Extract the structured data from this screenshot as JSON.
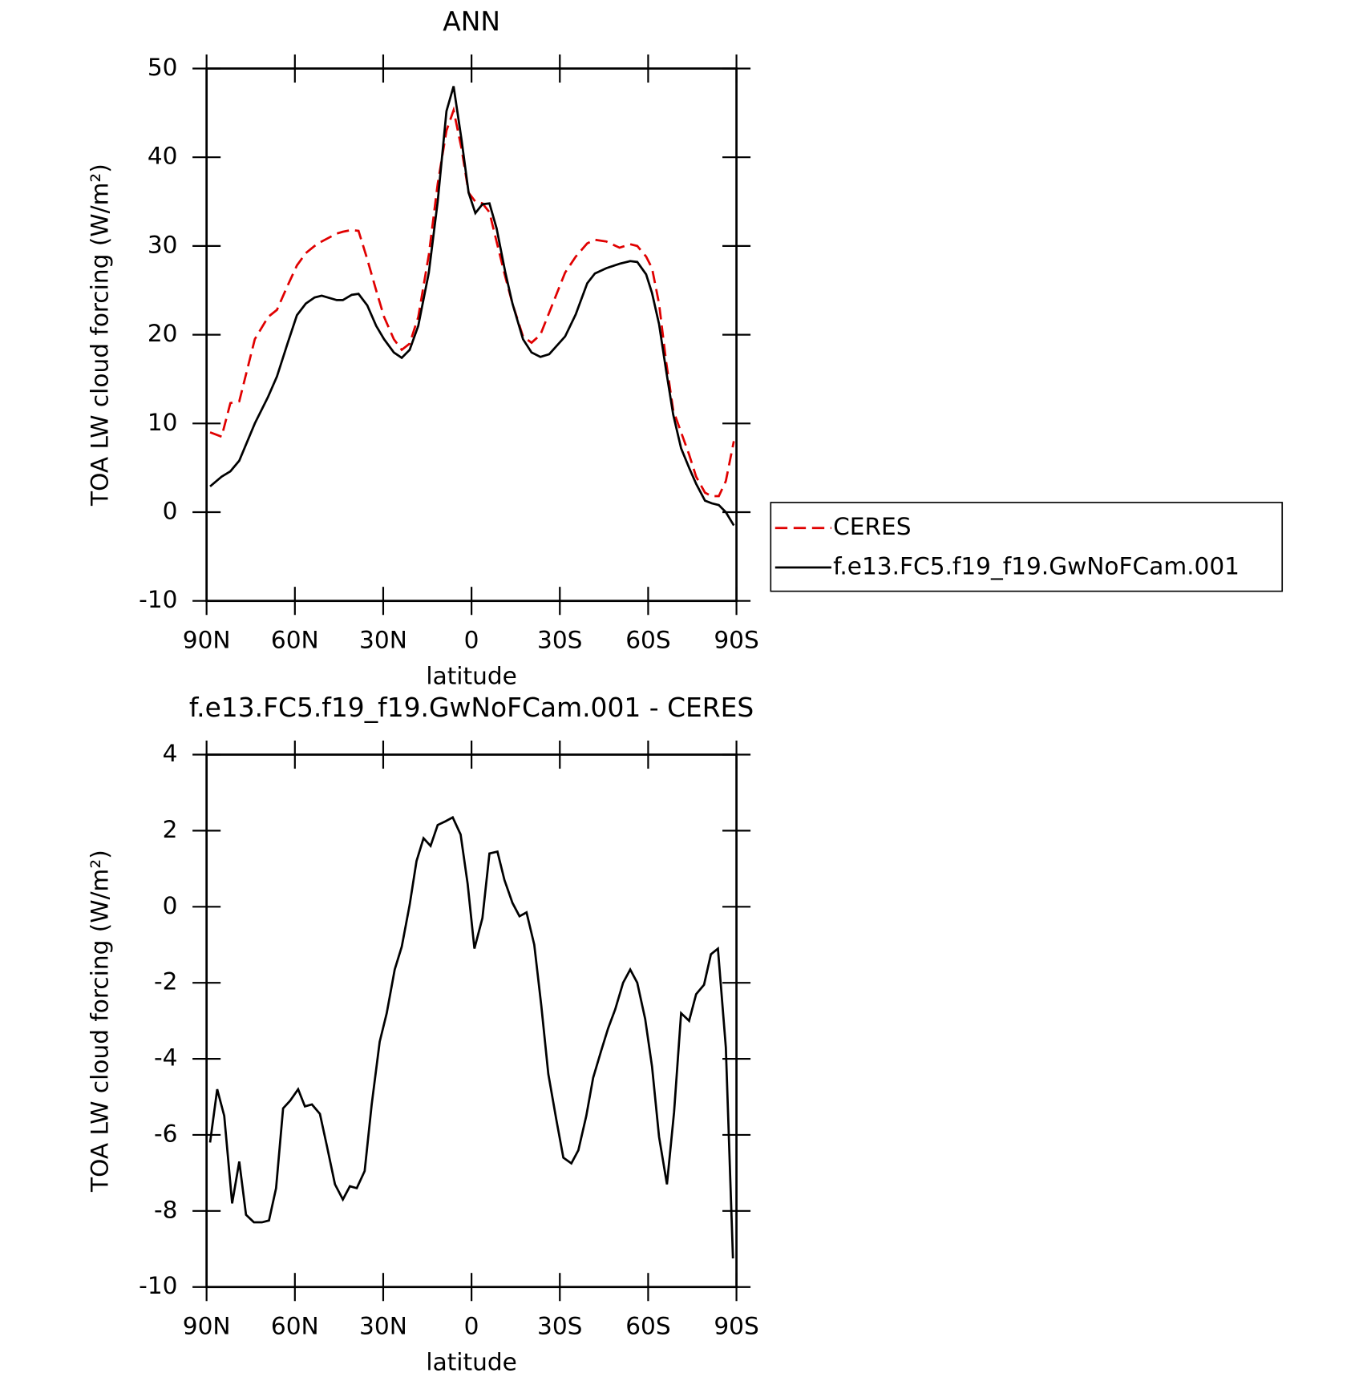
{
  "chart_data": [
    {
      "type": "line",
      "title": "ANN",
      "xlabel": "latitude",
      "ylabel": "TOA LW cloud forcing (W/m²)",
      "xlim": [
        90,
        -90
      ],
      "ylim": [
        -10,
        50
      ],
      "xticks": [
        {
          "value": 90,
          "label": "90N"
        },
        {
          "value": 60,
          "label": "60N"
        },
        {
          "value": 30,
          "label": "30N"
        },
        0,
        {
          "value": -30,
          "label": "30S"
        },
        {
          "value": -60,
          "label": "60S"
        },
        {
          "value": -90,
          "label": "90S"
        }
      ],
      "yticks": [
        -10,
        0,
        10,
        20,
        30,
        40,
        50
      ],
      "legend": "right",
      "x": [
        88.8,
        84.9,
        81.9,
        78.9,
        73.6,
        69.1,
        66.1,
        62.5,
        59.3,
        56.3,
        53.3,
        50.9,
        45.8,
        43.7,
        40.7,
        38.4,
        35.4,
        32.4,
        29.7,
        26.4,
        23.7,
        21.0,
        18.1,
        14.5,
        11.5,
        8.5,
        6.1,
        3.4,
        1.0,
        -1.3,
        -3.7,
        -6.1,
        -8.5,
        -11.5,
        -13.9,
        -17.5,
        -20.4,
        -23.4,
        -26.4,
        -31.8,
        -35.4,
        -39.3,
        -41.9,
        -45.8,
        -50.3,
        -53.9,
        -56.3,
        -59.3,
        -61.3,
        -63.7,
        -66.1,
        -68.5,
        -71.2,
        -73.9,
        -76.3,
        -79.3,
        -81.6,
        -84.0,
        -86.4,
        -89.1
      ],
      "series": [
        {
          "name": "CERES",
          "color": "#e00000",
          "style": "dashed",
          "values": [
            9.0,
            8.5,
            12.3,
            12.5,
            19.5,
            22,
            22.8,
            25.5,
            27.8,
            29.2,
            30,
            30.5,
            31.4,
            31.6,
            31.8,
            31.7,
            28.5,
            25,
            22,
            19.5,
            18.3,
            19.0,
            22,
            29,
            37,
            43,
            45.3,
            41,
            36,
            35,
            34.8,
            33.8,
            30.5,
            26.5,
            23.5,
            19.8,
            19.1,
            20,
            22.5,
            27,
            28.8,
            30.3,
            30.7,
            30.5,
            29.8,
            30.2,
            30,
            28.8,
            27.5,
            23.5,
            17,
            11.5,
            9,
            6.5,
            4,
            2.2,
            1.8,
            1.8,
            3.5,
            8
          ]
        },
        {
          "name": "f.e13.FC5.f19_f19.GwNoFCam.001",
          "color": "#000000",
          "style": "solid",
          "values": [
            2.9,
            4.0,
            4.6,
            5.8,
            10,
            13,
            15.3,
            19,
            22.2,
            23.5,
            24.2,
            24.4,
            23.9,
            23.9,
            24.5,
            24.6,
            23.3,
            21,
            19.5,
            18,
            17.4,
            18.3,
            21,
            27,
            35,
            45.2,
            48,
            42,
            36,
            33.7,
            34.7,
            34.8,
            32,
            27,
            23.5,
            19.5,
            18,
            17.5,
            17.8,
            19.8,
            22.3,
            25.8,
            26.9,
            27.5,
            28,
            28.3,
            28.2,
            26.8,
            24.7,
            21.2,
            16,
            11,
            7.2,
            5,
            3.2,
            1.3,
            1.0,
            0.8,
            0,
            -1.5
          ]
        }
      ]
    },
    {
      "type": "line",
      "title": "f.e13.FC5.f19_f19.GwNoFCam.001 - CERES",
      "xlabel": "latitude",
      "ylabel": "TOA LW cloud forcing (W/m²)",
      "xlim": [
        90,
        -90
      ],
      "ylim": [
        -10,
        4
      ],
      "xticks": [
        {
          "value": 90,
          "label": "90N"
        },
        {
          "value": 60,
          "label": "60N"
        },
        {
          "value": 30,
          "label": "30N"
        },
        0,
        {
          "value": -30,
          "label": "30S"
        },
        {
          "value": -60,
          "label": "60S"
        },
        {
          "value": -90,
          "label": "90S"
        }
      ],
      "yticks": [
        -10,
        -8,
        -6,
        -4,
        -2,
        0,
        2,
        4
      ],
      "color": "#000000",
      "x": [
        88.8,
        86.4,
        84.0,
        81.3,
        78.9,
        76.6,
        73.9,
        71.2,
        68.8,
        66.4,
        64.0,
        61.6,
        58.9,
        56.6,
        54.2,
        51.5,
        49.1,
        46.4,
        43.7,
        41.3,
        39.0,
        36.3,
        33.9,
        31.2,
        28.8,
        26.1,
        23.7,
        21.0,
        18.7,
        16.3,
        13.9,
        11.5,
        8.8,
        6.4,
        3.7,
        1.3,
        -1.0,
        -3.7,
        -6.1,
        -8.8,
        -11.2,
        -13.9,
        -16.3,
        -18.7,
        -21.3,
        -23.7,
        -26.1,
        -28.8,
        -31.2,
        -33.9,
        -36.3,
        -39.0,
        -41.3,
        -44.0,
        -46.4,
        -48.8,
        -51.5,
        -53.9,
        -56.3,
        -59.0,
        -61.3,
        -63.7,
        -66.4,
        -68.8,
        -71.2,
        -73.9,
        -76.3,
        -79.0,
        -81.3,
        -83.7,
        -86.4,
        -88.8
      ],
      "values": [
        -6.2,
        -4.8,
        -5.5,
        -7.8,
        -6.7,
        -8.1,
        -8.3,
        -8.3,
        -8.25,
        -7.4,
        -5.3,
        -5.1,
        -4.8,
        -5.25,
        -5.2,
        -5.45,
        -6.3,
        -7.3,
        -7.7,
        -7.35,
        -7.4,
        -6.95,
        -5.2,
        -3.55,
        -2.8,
        -1.65,
        -1.05,
        0.05,
        1.2,
        1.8,
        1.6,
        2.15,
        2.25,
        2.35,
        1.9,
        0.6,
        -1.1,
        -0.3,
        1.4,
        1.45,
        0.7,
        0.1,
        -0.25,
        -0.15,
        -1.0,
        -2.6,
        -4.4,
        -5.6,
        -6.6,
        -6.75,
        -6.4,
        -5.5,
        -4.5,
        -3.8,
        -3.2,
        -2.7,
        -2.0,
        -1.65,
        -2.0,
        -2.95,
        -4.2,
        -6.05,
        -7.3,
        -5.4,
        -2.8,
        -3.0,
        -2.3,
        -2.05,
        -1.25,
        -1.1,
        -3.7,
        -9.25
      ]
    }
  ]
}
